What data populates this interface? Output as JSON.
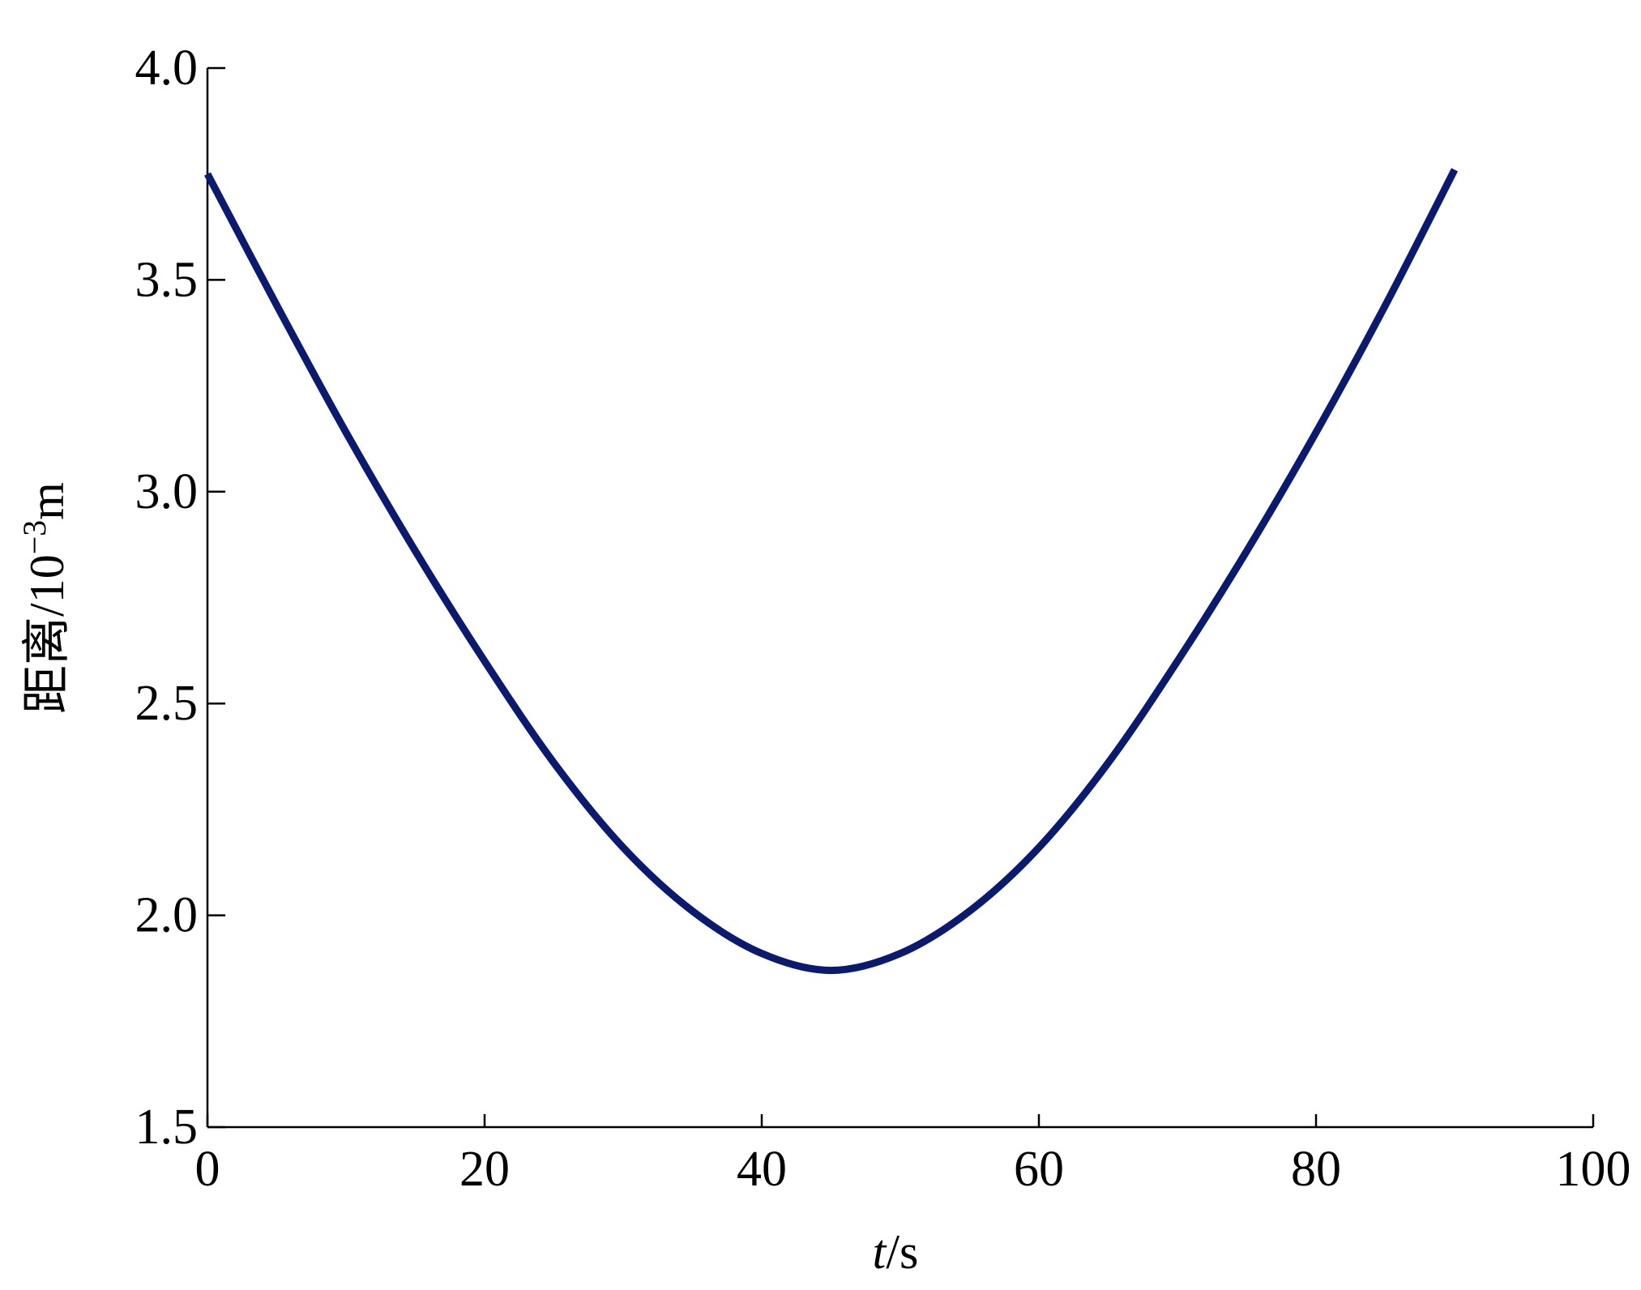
{
  "chart_data": {
    "type": "line",
    "title": "",
    "xlabel_italic": "t",
    "xlabel_unit": "/s",
    "ylabel_text": "距离/10",
    "ylabel_sup": "−3",
    "ylabel_unit": "m",
    "xlim": [
      0,
      100
    ],
    "ylim": [
      1.5,
      4.0
    ],
    "xticks": [
      0,
      20,
      40,
      60,
      80,
      100
    ],
    "xtick_labels": [
      "0",
      "20",
      "40",
      "60",
      "80",
      "100"
    ],
    "yticks": [
      1.5,
      2.0,
      2.5,
      3.0,
      3.5,
      4.0
    ],
    "ytick_labels": [
      "1.5",
      "2.0",
      "2.5",
      "3.0",
      "3.5",
      "4.0"
    ],
    "grid": false,
    "legend": "none",
    "series": [
      {
        "color": "#0a1a6e",
        "x": [
          0,
          5,
          10,
          15,
          20,
          25,
          30,
          35,
          40,
          45,
          50,
          55,
          60,
          65,
          70,
          75,
          80,
          85,
          90
        ],
        "y": [
          3.75,
          3.44,
          3.14,
          2.86,
          2.6,
          2.36,
          2.16,
          2.01,
          1.91,
          1.87,
          1.91,
          2.01,
          2.16,
          2.36,
          2.6,
          2.86,
          3.14,
          3.44,
          3.76
        ]
      }
    ]
  }
}
